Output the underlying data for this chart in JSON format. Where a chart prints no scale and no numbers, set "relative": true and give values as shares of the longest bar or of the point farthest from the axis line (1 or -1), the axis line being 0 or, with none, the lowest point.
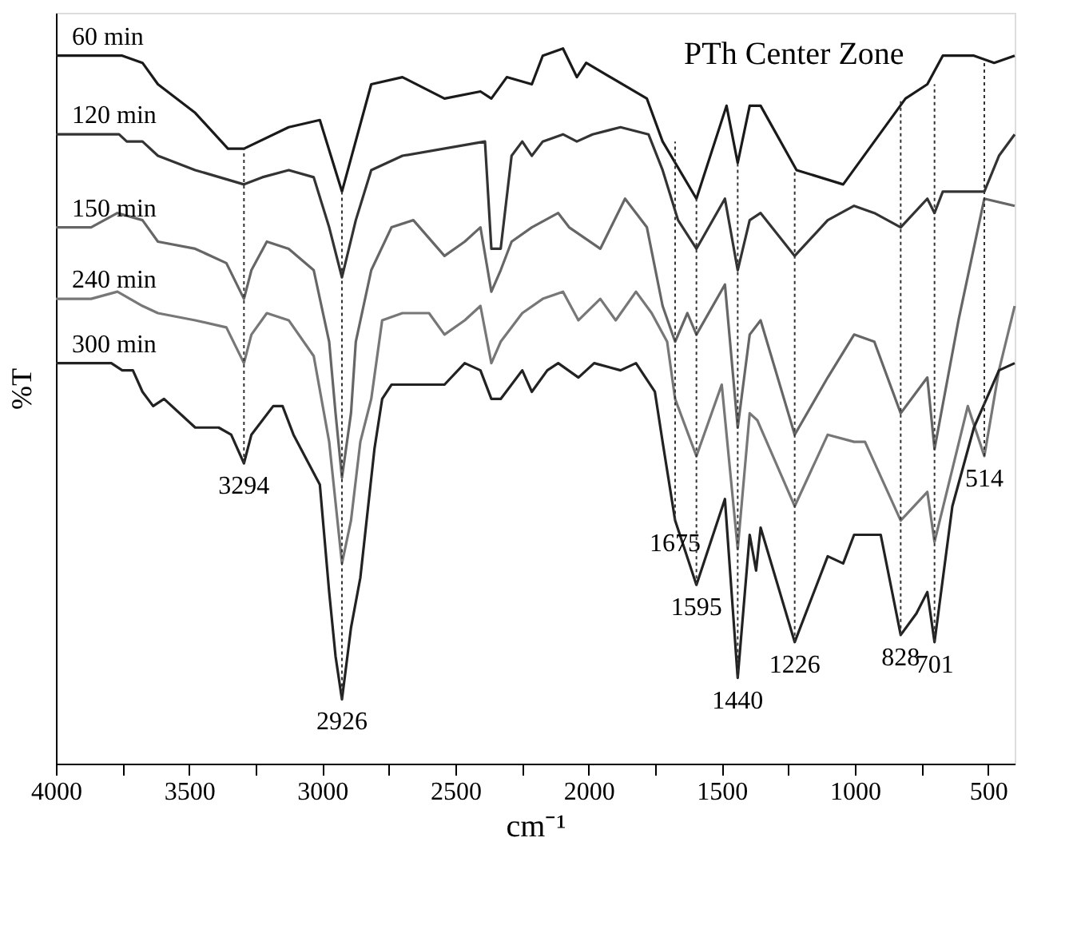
{
  "chart_data": {
    "type": "line",
    "title": "PTh Center Zone",
    "xlabel": "cm⁻¹",
    "ylabel": "%T",
    "relative": true,
    "tick_labels": "x",
    "line_style": "solid",
    "marker": "none",
    "xlim": [
      4000,
      400
    ],
    "xticks": [
      4000,
      {
        "value": 3750,
        "label": null
      },
      3500,
      {
        "value": 3250,
        "label": null
      },
      3000,
      {
        "value": 2750,
        "label": null
      },
      2500,
      {
        "value": 2250,
        "label": null
      },
      2000,
      {
        "value": 1750,
        "label": null
      },
      1500,
      {
        "value": 1250,
        "label": null
      },
      1000,
      {
        "value": 750,
        "label": null
      },
      500
    ],
    "series": [
      {
        "name": "60 min",
        "color": "#1a1a1a",
        "x": [
          4000,
          3751,
          3675,
          3617,
          3477,
          3354,
          3294,
          3126,
          3009,
          2926,
          2816,
          2699,
          2541,
          2406,
          2365,
          2307,
          2213,
          2172,
          2096,
          2044,
          2009,
          1781,
          1722,
          1595,
          1482,
          1440,
          1395,
          1354,
          1219,
          1044,
          927,
          810,
          728,
          670,
          553,
          477,
          400
        ],
        "values": [
          0.99,
          0.99,
          0.98,
          0.95,
          0.91,
          0.86,
          0.86,
          0.89,
          0.9,
          0.8,
          0.95,
          0.96,
          0.93,
          0.94,
          0.93,
          0.96,
          0.95,
          0.99,
          1.0,
          0.96,
          0.98,
          0.93,
          0.87,
          0.79,
          0.92,
          0.84,
          0.92,
          0.92,
          0.83,
          0.81,
          0.87,
          0.93,
          0.95,
          0.99,
          0.99,
          0.98,
          0.99
        ]
      },
      {
        "name": "120 min",
        "color": "#333333",
        "x": [
          4000,
          3868,
          3763,
          3734,
          3675,
          3617,
          3477,
          3294,
          3225,
          3126,
          3032,
          2974,
          2926,
          2874,
          2816,
          2699,
          2389,
          2365,
          2330,
          2289,
          2249,
          2213,
          2172,
          2096,
          2044,
          1985,
          1880,
          1775,
          1722,
          1664,
          1595,
          1488,
          1440,
          1395,
          1354,
          1226,
          1102,
          1003,
          927,
          828,
          728,
          701,
          670,
          514,
          459,
          400
        ],
        "values": [
          0.88,
          0.88,
          0.88,
          0.87,
          0.87,
          0.85,
          0.83,
          0.81,
          0.82,
          0.83,
          0.82,
          0.75,
          0.68,
          0.76,
          0.83,
          0.85,
          0.87,
          0.72,
          0.72,
          0.85,
          0.87,
          0.85,
          0.87,
          0.88,
          0.87,
          0.88,
          0.89,
          0.88,
          0.83,
          0.76,
          0.72,
          0.79,
          0.69,
          0.76,
          0.77,
          0.71,
          0.76,
          0.78,
          0.77,
          0.75,
          0.79,
          0.77,
          0.8,
          0.8,
          0.85,
          0.88
        ]
      },
      {
        "name": "150 min",
        "color": "#666666",
        "x": [
          4000,
          3868,
          3769,
          3675,
          3617,
          3477,
          3360,
          3294,
          3266,
          3208,
          3126,
          3032,
          2974,
          2950,
          2926,
          2892,
          2874,
          2816,
          2740,
          2658,
          2541,
          2465,
          2406,
          2365,
          2330,
          2289,
          2213,
          2114,
          2073,
          1956,
          1863,
          1781,
          1722,
          1675,
          1629,
          1595,
          1488,
          1440,
          1395,
          1354,
          1226,
          1102,
          1003,
          927,
          828,
          728,
          701,
          611,
          514,
          400
        ],
        "values": [
          0.75,
          0.75,
          0.77,
          0.76,
          0.73,
          0.72,
          0.7,
          0.65,
          0.69,
          0.73,
          0.72,
          0.69,
          0.59,
          0.49,
          0.4,
          0.49,
          0.59,
          0.69,
          0.75,
          0.76,
          0.71,
          0.73,
          0.75,
          0.66,
          0.69,
          0.73,
          0.75,
          0.77,
          0.75,
          0.72,
          0.79,
          0.75,
          0.64,
          0.59,
          0.63,
          0.6,
          0.67,
          0.47,
          0.6,
          0.62,
          0.46,
          0.54,
          0.6,
          0.59,
          0.49,
          0.54,
          0.44,
          0.62,
          0.79,
          0.78
        ]
      },
      {
        "name": "240 min",
        "color": "#777777",
        "x": [
          4000,
          3868,
          3769,
          3675,
          3617,
          3477,
          3360,
          3294,
          3266,
          3208,
          3126,
          3032,
          2974,
          2926,
          2892,
          2857,
          2816,
          2775,
          2699,
          2599,
          2541,
          2465,
          2406,
          2365,
          2330,
          2249,
          2172,
          2096,
          2038,
          1956,
          1898,
          1822,
          1763,
          1705,
          1675,
          1595,
          1500,
          1440,
          1395,
          1366,
          1226,
          1102,
          1003,
          962,
          828,
          728,
          701,
          576,
          514,
          459,
          400
        ],
        "values": [
          0.65,
          0.65,
          0.66,
          0.64,
          0.63,
          0.62,
          0.61,
          0.56,
          0.6,
          0.63,
          0.62,
          0.57,
          0.45,
          0.28,
          0.34,
          0.45,
          0.51,
          0.62,
          0.63,
          0.63,
          0.6,
          0.62,
          0.64,
          0.56,
          0.59,
          0.63,
          0.65,
          0.66,
          0.62,
          0.65,
          0.62,
          0.66,
          0.63,
          0.59,
          0.51,
          0.43,
          0.53,
          0.3,
          0.49,
          0.48,
          0.36,
          0.46,
          0.45,
          0.45,
          0.34,
          0.38,
          0.31,
          0.5,
          0.43,
          0.55,
          0.64
        ]
      },
      {
        "name": "300 min",
        "color": "#222222",
        "x": [
          4000,
          3868,
          3792,
          3751,
          3711,
          3675,
          3635,
          3594,
          3477,
          3389,
          3342,
          3294,
          3266,
          3184,
          3149,
          3108,
          3009,
          2974,
          2950,
          2926,
          2892,
          2857,
          2804,
          2775,
          2740,
          2658,
          2541,
          2465,
          2406,
          2365,
          2330,
          2249,
          2213,
          2155,
          2114,
          2038,
          1979,
          1880,
          1822,
          1751,
          1722,
          1675,
          1595,
          1488,
          1440,
          1395,
          1371,
          1354,
          1226,
          1102,
          1044,
          1003,
          903,
          828,
          769,
          728,
          701,
          634,
          553,
          459,
          400
        ],
        "values": [
          0.56,
          0.56,
          0.56,
          0.55,
          0.55,
          0.52,
          0.5,
          0.51,
          0.47,
          0.47,
          0.46,
          0.42,
          0.46,
          0.5,
          0.5,
          0.46,
          0.39,
          0.24,
          0.15,
          0.09,
          0.19,
          0.26,
          0.44,
          0.51,
          0.53,
          0.53,
          0.53,
          0.56,
          0.55,
          0.51,
          0.51,
          0.55,
          0.52,
          0.55,
          0.56,
          0.54,
          0.56,
          0.55,
          0.56,
          0.52,
          0.45,
          0.34,
          0.25,
          0.37,
          0.12,
          0.32,
          0.27,
          0.33,
          0.17,
          0.29,
          0.28,
          0.32,
          0.32,
          0.18,
          0.21,
          0.24,
          0.17,
          0.36,
          0.47,
          0.55,
          0.56
        ]
      }
    ],
    "ref_lines": [
      {
        "axis": "x",
        "value": 3294,
        "label": "3294",
        "color": "#333333",
        "line_style": "dotted"
      },
      {
        "axis": "x",
        "value": 2926,
        "label": "2926",
        "color": "#333333",
        "line_style": "dotted"
      },
      {
        "axis": "x",
        "value": 1675,
        "label": "1675",
        "color": "#333333",
        "line_style": "dotted"
      },
      {
        "axis": "x",
        "value": 1595,
        "label": "1595",
        "color": "#333333",
        "line_style": "dotted"
      },
      {
        "axis": "x",
        "value": 1440,
        "label": "1440",
        "color": "#333333",
        "line_style": "dotted"
      },
      {
        "axis": "x",
        "value": 1226,
        "label": "1226",
        "color": "#333333",
        "line_style": "dotted"
      },
      {
        "axis": "x",
        "value": 828,
        "label": "828",
        "color": "#333333",
        "line_style": "dotted"
      },
      {
        "axis": "x",
        "value": 701,
        "label": "701",
        "color": "#333333",
        "line_style": "dotted"
      },
      {
        "axis": "x",
        "value": 514,
        "label": "514",
        "color": "#333333",
        "line_style": "dotted"
      }
    ]
  }
}
